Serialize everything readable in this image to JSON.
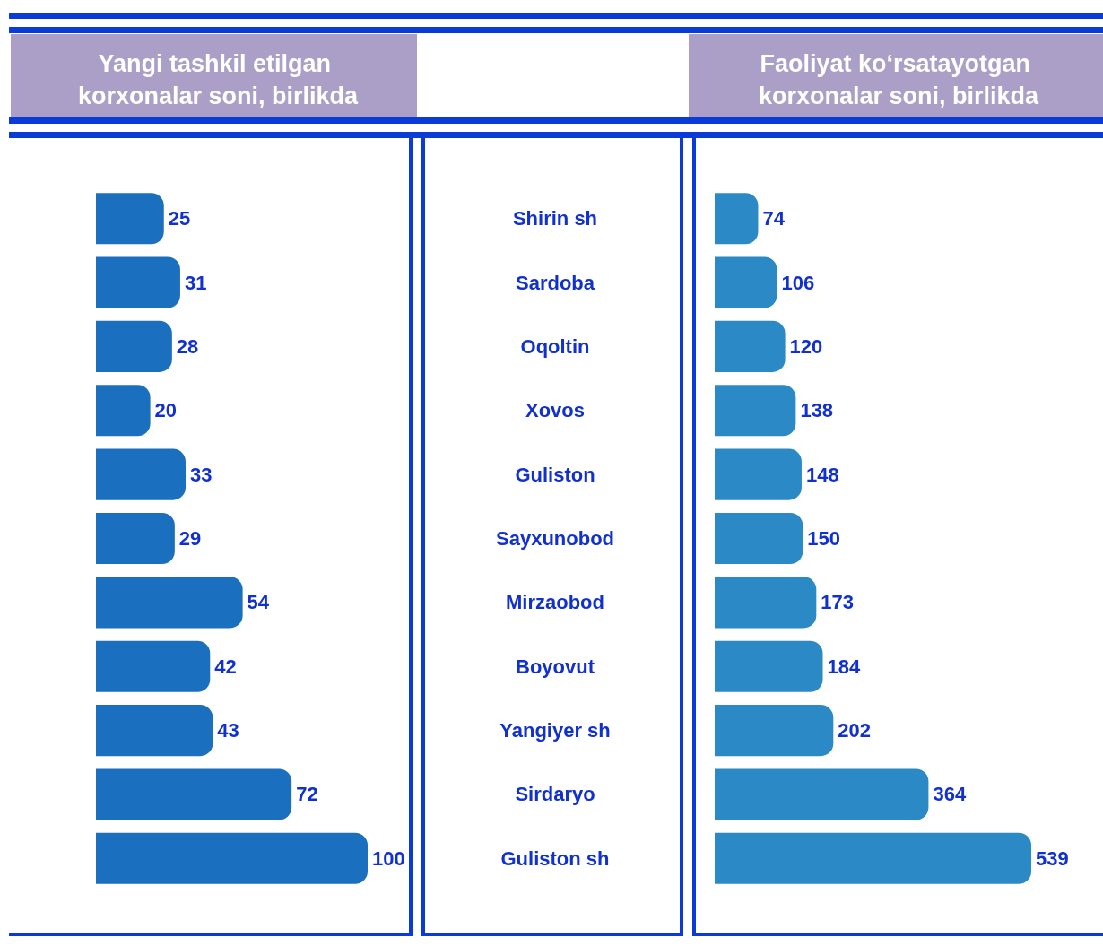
{
  "chart_data": [
    {
      "type": "bar",
      "orientation": "horizontal",
      "title": "Yangi tashkil etilgan korxonalar soni, birlikda",
      "categories": [
        "Shirin sh",
        "Sardoba",
        "Oqoltin",
        "Xovos",
        "Guliston",
        "Sayxunobod",
        "Mirzaobod",
        "Boyovut",
        "Yangiyer sh",
        "Sirdaryo",
        "Guliston sh"
      ],
      "color": "#1a6fbf",
      "values": [
        25,
        31,
        28,
        20,
        33,
        29,
        54,
        42,
        43,
        72,
        100
      ],
      "data_labels": true,
      "tick_labels": "y"
    },
    {
      "type": "bar",
      "orientation": "horizontal",
      "title": "Faoliyat ko‘rsatayotgan korxonalar soni, birlikda",
      "categories": [
        "Shirin sh",
        "Sardoba",
        "Oqoltin",
        "Xovos",
        "Guliston",
        "Sayxunobod",
        "Mirzaobod",
        "Boyovut",
        "Yangiyer sh",
        "Sirdaryo",
        "Guliston sh"
      ],
      "color": "#2b8ac6",
      "values": [
        74,
        106,
        120,
        138,
        148,
        150,
        173,
        184,
        202,
        364,
        539
      ],
      "data_labels": true,
      "tick_labels": false
    }
  ]
}
